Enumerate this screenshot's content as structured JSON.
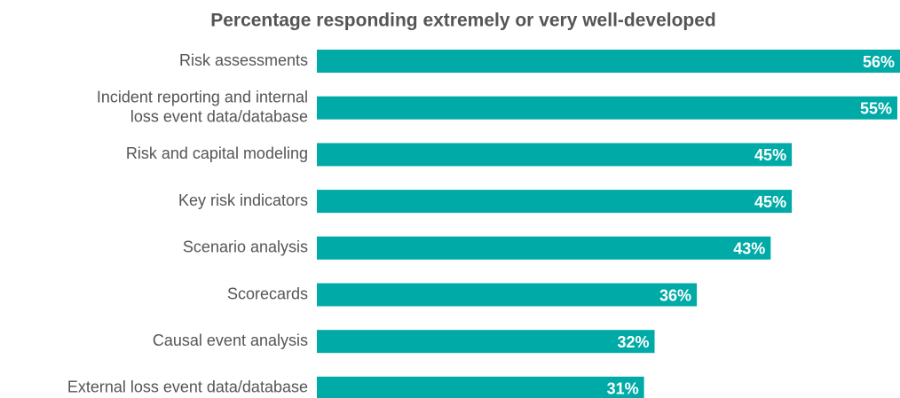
{
  "chart_data": {
    "type": "bar",
    "orientation": "horizontal",
    "title": "Percentage responding extremely or very well-developed",
    "categories": [
      "Risk assessments",
      "Incident reporting and internal\nloss event data/database",
      "Risk and capital modeling",
      "Key risk indicators",
      "Scenario analysis",
      "Scorecards",
      "Causal event analysis",
      "External loss event data/database"
    ],
    "values": [
      56,
      55,
      45,
      45,
      43,
      36,
      32,
      31
    ],
    "value_labels": [
      "56%",
      "55%",
      "45%",
      "45%",
      "43%",
      "36%",
      "32%",
      "31%"
    ],
    "color": "#00aaa6",
    "xlim": [
      0,
      55
    ]
  }
}
